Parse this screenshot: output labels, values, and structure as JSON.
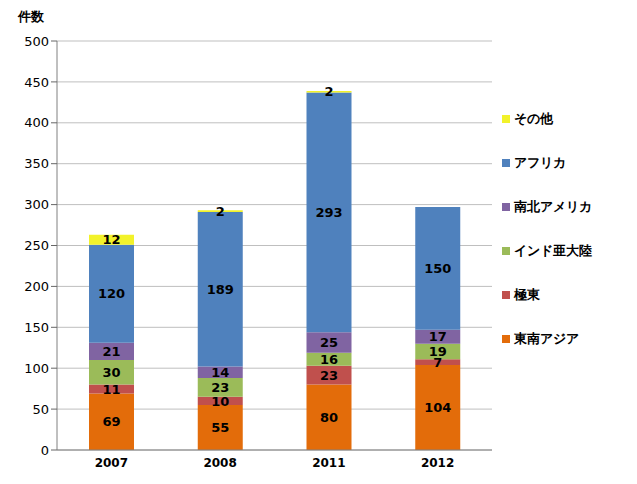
{
  "chart_data": {
    "type": "bar",
    "y_label": "件数",
    "categories": [
      "2007",
      "2008",
      "2011",
      "2012"
    ],
    "series": [
      {
        "name": "東南アジア",
        "color": "#E36C0A",
        "values": [
          69,
          55,
          80,
          104
        ]
      },
      {
        "name": "極東",
        "color": "#C0504D",
        "values": [
          11,
          10,
          23,
          7
        ]
      },
      {
        "name": "インド亜大陸",
        "color": "#9BBB59",
        "values": [
          30,
          23,
          16,
          19
        ]
      },
      {
        "name": "南北アメリカ",
        "color": "#8064A2",
        "values": [
          21,
          14,
          25,
          17
        ]
      },
      {
        "name": "アフリカ",
        "color": "#4F81BD",
        "values": [
          120,
          189,
          293,
          150
        ]
      },
      {
        "name": "その他",
        "color": "#F2F22A",
        "values": [
          12,
          2,
          2,
          0
        ]
      }
    ],
    "ylim": [
      0,
      500
    ],
    "yticks": [
      0,
      50,
      100,
      150,
      200,
      250,
      300,
      350,
      400,
      450,
      500
    ],
    "stacked": true,
    "data_labels": true,
    "grid": true,
    "legend": "right"
  }
}
